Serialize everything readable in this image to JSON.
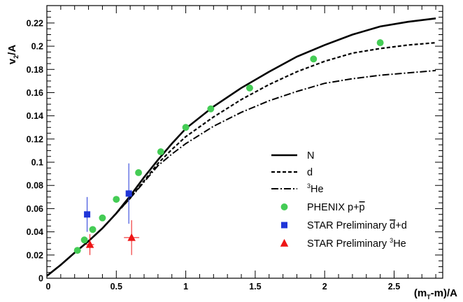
{
  "chart_data": {
    "type": "scatter",
    "title": "",
    "xlabel": {
      "main": "(m",
      "sub": "T",
      "rest": "-m)/A"
    },
    "ylabel": {
      "main": "v",
      "sub": "2",
      "rest": "/A"
    },
    "xlim": [
      0,
      2.85
    ],
    "ylim": [
      0,
      0.235
    ],
    "x_ticks": [
      0,
      0.5,
      1,
      1.5,
      2,
      2.5
    ],
    "x_tick_labels": [
      "0",
      "0.5",
      "1",
      "1.5",
      "2",
      "2.5"
    ],
    "y_ticks": [
      0,
      0.02,
      0.04,
      0.06,
      0.08,
      0.1,
      0.12,
      0.14,
      0.16,
      0.18,
      0.2,
      0.22
    ],
    "y_tick_labels": [
      "0",
      "0.02",
      "0.04",
      "0.06",
      "0.08",
      "0.1",
      "0.12",
      "0.14",
      "0.16",
      "0.18",
      "0.2",
      "0.22"
    ],
    "grid": false,
    "legend_position": "lower-right",
    "curves": [
      {
        "name": "N",
        "style": "solid",
        "points": [
          [
            0,
            0.002
          ],
          [
            0.1,
            0.0115
          ],
          [
            0.2,
            0.022
          ],
          [
            0.3,
            0.032
          ],
          [
            0.4,
            0.043
          ],
          [
            0.5,
            0.056
          ],
          [
            0.6,
            0.071
          ],
          [
            0.7,
            0.087
          ],
          [
            0.8,
            0.102
          ],
          [
            0.9,
            0.116
          ],
          [
            1.0,
            0.129
          ],
          [
            1.2,
            0.148
          ],
          [
            1.4,
            0.164
          ],
          [
            1.6,
            0.178
          ],
          [
            1.8,
            0.191
          ],
          [
            2.0,
            0.201
          ],
          [
            2.2,
            0.21
          ],
          [
            2.4,
            0.217
          ],
          [
            2.6,
            0.221
          ],
          [
            2.8,
            0.224
          ]
        ]
      },
      {
        "name": "d",
        "style": "dashed",
        "points": [
          [
            0,
            0.002
          ],
          [
            0.1,
            0.0115
          ],
          [
            0.2,
            0.022
          ],
          [
            0.3,
            0.032
          ],
          [
            0.4,
            0.043
          ],
          [
            0.5,
            0.056
          ],
          [
            0.6,
            0.069
          ],
          [
            0.7,
            0.084
          ],
          [
            0.8,
            0.099
          ],
          [
            0.9,
            0.111
          ],
          [
            1.0,
            0.122
          ],
          [
            1.2,
            0.139
          ],
          [
            1.4,
            0.154
          ],
          [
            1.6,
            0.167
          ],
          [
            1.8,
            0.178
          ],
          [
            2.0,
            0.187
          ],
          [
            2.2,
            0.194
          ],
          [
            2.4,
            0.198
          ],
          [
            2.6,
            0.201
          ],
          [
            2.8,
            0.203
          ]
        ]
      },
      {
        "name": "He",
        "name_prefix_sup": "3",
        "style": "dashdot",
        "points": [
          [
            0,
            0.002
          ],
          [
            0.1,
            0.0115
          ],
          [
            0.2,
            0.022
          ],
          [
            0.3,
            0.032
          ],
          [
            0.4,
            0.043
          ],
          [
            0.5,
            0.056
          ],
          [
            0.6,
            0.069
          ],
          [
            0.7,
            0.083
          ],
          [
            0.8,
            0.097
          ],
          [
            0.9,
            0.107
          ],
          [
            1.0,
            0.116
          ],
          [
            1.2,
            0.131
          ],
          [
            1.4,
            0.143
          ],
          [
            1.6,
            0.153
          ],
          [
            1.8,
            0.161
          ],
          [
            2.0,
            0.168
          ],
          [
            2.2,
            0.172
          ],
          [
            2.4,
            0.175
          ],
          [
            2.6,
            0.177
          ],
          [
            2.8,
            0.179
          ]
        ]
      }
    ],
    "series": [
      {
        "name": "PHENIX p+p̅",
        "legend_parts": {
          "pre": "PHENIX p+",
          "bar": "p",
          "post": ""
        },
        "marker": "circle",
        "color": "#44cc55",
        "points": [
          {
            "x": 0.22,
            "y": 0.024,
            "xerr": 0,
            "yerr": 0
          },
          {
            "x": 0.27,
            "y": 0.033,
            "xerr": 0,
            "yerr": 0
          },
          {
            "x": 0.33,
            "y": 0.042,
            "xerr": 0,
            "yerr": 0
          },
          {
            "x": 0.4,
            "y": 0.052,
            "xerr": 0,
            "yerr": 0
          },
          {
            "x": 0.5,
            "y": 0.068,
            "xerr": 0,
            "yerr": 0
          },
          {
            "x": 0.66,
            "y": 0.091,
            "xerr": 0,
            "yerr": 0
          },
          {
            "x": 0.82,
            "y": 0.109,
            "xerr": 0,
            "yerr": 0
          },
          {
            "x": 1.0,
            "y": 0.13,
            "xerr": 0,
            "yerr": 0
          },
          {
            "x": 1.18,
            "y": 0.146,
            "xerr": 0,
            "yerr": 0
          },
          {
            "x": 1.46,
            "y": 0.164,
            "xerr": 0,
            "yerr": 0.0015
          },
          {
            "x": 1.92,
            "y": 0.189,
            "xerr": 0,
            "yerr": 0.0015
          },
          {
            "x": 2.4,
            "y": 0.203,
            "xerr": 0,
            "yerr": 0.003
          }
        ]
      },
      {
        "name": "STAR Preliminary d̅+d",
        "legend_parts": {
          "pre": "STAR Preliminary ",
          "bar": "d",
          "post": "+d"
        },
        "marker": "square",
        "color": "#1f35d8",
        "points": [
          {
            "x": 0.29,
            "y": 0.055,
            "xerr": 0.012,
            "yerr": 0.015
          },
          {
            "x": 0.59,
            "y": 0.073,
            "xerr": 0.012,
            "yerr": 0.026
          }
        ]
      },
      {
        "name": "STAR Preliminary He",
        "legend_parts": {
          "pre": "STAR Preliminary ",
          "sup": "3",
          "post": "He"
        },
        "marker": "triangle",
        "color": "#ee1515",
        "points": [
          {
            "x": 0.31,
            "y": 0.029,
            "xerr": 0.03,
            "yerr": 0.009
          },
          {
            "x": 0.61,
            "y": 0.035,
            "xerr": 0.055,
            "yerr": 0.015
          }
        ]
      }
    ]
  }
}
